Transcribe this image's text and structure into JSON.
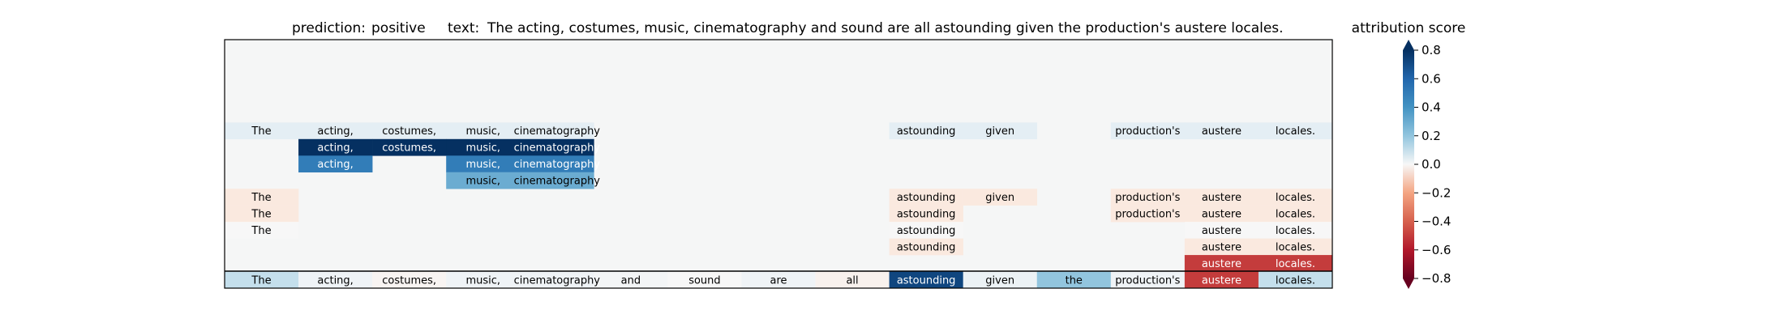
{
  "chart_data": {
    "type": "heatmap",
    "title_prediction_label": "prediction:",
    "title_prediction_value": "positive",
    "title_text_label": "text:",
    "title_text_value": "The acting, costumes, music, cinematography and sound are all astounding given the production's austere locales.",
    "colorbar_title": "attribution score",
    "colorbar_ticks": [
      "0.8",
      "0.6",
      "0.4",
      "0.2",
      "0.0",
      "−0.2",
      "−0.4",
      "−0.6",
      "−0.8"
    ],
    "colorbar_tick_values": [
      0.8,
      0.6,
      0.4,
      0.2,
      0.0,
      -0.2,
      -0.4,
      -0.6,
      -0.8
    ],
    "vmin": -0.8,
    "vmax": 0.8,
    "tokens": [
      "The",
      "acting,",
      "costumes,",
      "music,",
      "cinematography",
      "and",
      "sound",
      "are",
      "all",
      "astounding",
      "given",
      "the",
      "production's",
      "austere",
      "locales."
    ],
    "rows": [
      [
        null,
        null,
        null,
        null,
        null,
        null,
        null,
        null,
        null,
        null,
        null,
        null,
        null,
        null,
        null
      ],
      [
        null,
        null,
        null,
        null,
        null,
        null,
        null,
        null,
        null,
        null,
        null,
        null,
        null,
        null,
        null
      ],
      [
        null,
        null,
        null,
        null,
        null,
        null,
        null,
        null,
        null,
        null,
        null,
        null,
        null,
        null,
        null
      ],
      [
        null,
        null,
        null,
        null,
        null,
        null,
        null,
        null,
        null,
        null,
        null,
        null,
        null,
        null,
        null
      ],
      [
        null,
        null,
        null,
        null,
        null,
        null,
        null,
        null,
        null,
        null,
        null,
        null,
        null,
        null,
        null
      ],
      [
        0.05,
        0.05,
        0.05,
        0.05,
        0.05,
        null,
        null,
        null,
        null,
        0.05,
        0.05,
        null,
        0.05,
        0.05,
        0.05
      ],
      [
        null,
        0.85,
        0.85,
        0.85,
        0.85,
        null,
        null,
        null,
        null,
        null,
        null,
        null,
        null,
        null,
        null
      ],
      [
        null,
        0.5,
        null,
        0.5,
        0.5,
        null,
        null,
        null,
        null,
        null,
        null,
        null,
        null,
        null,
        null
      ],
      [
        null,
        null,
        null,
        0.3,
        0.3,
        null,
        null,
        null,
        null,
        null,
        null,
        null,
        null,
        null,
        null
      ],
      [
        -0.05,
        null,
        null,
        null,
        null,
        null,
        null,
        null,
        null,
        -0.05,
        -0.05,
        null,
        -0.05,
        -0.05,
        -0.05
      ],
      [
        -0.05,
        null,
        null,
        null,
        null,
        null,
        null,
        null,
        null,
        -0.05,
        null,
        null,
        -0.05,
        -0.05,
        -0.05
      ],
      [
        0.0,
        null,
        null,
        null,
        null,
        null,
        null,
        null,
        null,
        0.0,
        null,
        null,
        null,
        0.0,
        0.0
      ],
      [
        null,
        null,
        null,
        null,
        null,
        null,
        null,
        null,
        null,
        -0.05,
        null,
        null,
        null,
        -0.05,
        -0.05
      ],
      [
        null,
        null,
        null,
        null,
        null,
        null,
        null,
        null,
        null,
        null,
        null,
        null,
        null,
        -0.5,
        -0.5
      ]
    ],
    "summary_row": [
      0.12,
      0.02,
      -0.01,
      0.02,
      0.02,
      0.01,
      0.0,
      0.02,
      -0.02,
      0.72,
      0.03,
      0.2,
      0.02,
      -0.5,
      0.12
    ]
  }
}
